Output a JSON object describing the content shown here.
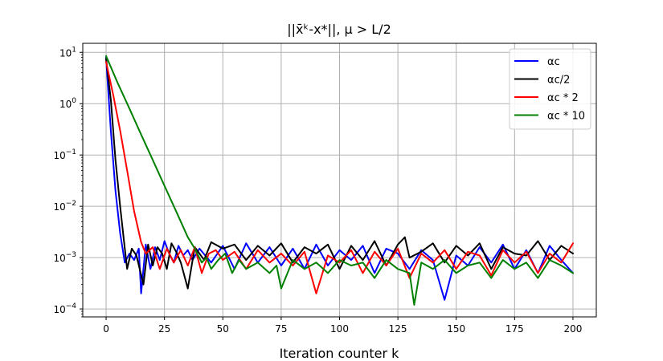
{
  "chart_data": {
    "type": "line",
    "title": "||x̄ᵏ-x*||, μ > L/2",
    "xlabel": "Iteration counter k",
    "ylabel": "",
    "xlim": [
      -10,
      210
    ],
    "ylim": [
      7e-05,
      15
    ],
    "yscale": "log",
    "grid": true,
    "legend_position": "top-right",
    "x_ticks": [
      0,
      25,
      50,
      75,
      100,
      125,
      150,
      175,
      200
    ],
    "x_tick_labels": [
      "0",
      "25",
      "50",
      "75",
      "100",
      "125",
      "150",
      "175",
      "200"
    ],
    "y_ticks": [
      0.0001,
      0.001,
      0.01,
      0.1,
      1,
      10
    ],
    "y_tick_labels": [
      {
        "base": "10",
        "exp": "−4"
      },
      {
        "base": "10",
        "exp": "−3"
      },
      {
        "base": "10",
        "exp": "−2"
      },
      {
        "base": "10",
        "exp": "−1"
      },
      {
        "base": "10",
        "exp": "0"
      },
      {
        "base": "10",
        "exp": "1"
      }
    ],
    "series": [
      {
        "name": "αc",
        "color": "#0000ff",
        "x": [
          0,
          2,
          4,
          6,
          8,
          10,
          12,
          14,
          15,
          17,
          19,
          21,
          23,
          25,
          27,
          29,
          31,
          33,
          35,
          37,
          40,
          45,
          50,
          55,
          60,
          65,
          70,
          75,
          80,
          85,
          90,
          95,
          100,
          105,
          110,
          115,
          120,
          125,
          130,
          135,
          140,
          145,
          150,
          155,
          160,
          165,
          170,
          175,
          180,
          185,
          190,
          195,
          200
        ],
        "y": [
          8.0,
          0.3,
          0.02,
          0.003,
          0.0008,
          0.0012,
          0.0009,
          0.0015,
          0.0002,
          0.0018,
          0.0006,
          0.0016,
          0.0009,
          0.0021,
          0.0012,
          0.0008,
          0.0017,
          0.0011,
          0.0014,
          0.0009,
          0.0015,
          0.0008,
          0.0017,
          0.0006,
          0.0019,
          0.0008,
          0.0016,
          0.0007,
          0.0015,
          0.0006,
          0.0018,
          0.0007,
          0.0014,
          0.0009,
          0.0017,
          0.0005,
          0.0015,
          0.0012,
          0.0006,
          0.0014,
          0.0009,
          0.00015,
          0.0011,
          0.0007,
          0.0016,
          0.0008,
          0.0018,
          0.0006,
          0.0014,
          0.0005,
          0.0017,
          0.0009,
          0.0005
        ]
      },
      {
        "name": "αc/2",
        "color": "#000000",
        "x": [
          0,
          2,
          4,
          6,
          8,
          9,
          11,
          13,
          16,
          18,
          20,
          22,
          24,
          26,
          28,
          30,
          32,
          35,
          38,
          42,
          45,
          50,
          55,
          60,
          65,
          70,
          75,
          80,
          85,
          90,
          95,
          100,
          105,
          110,
          115,
          120,
          125,
          128,
          130,
          135,
          140,
          145,
          150,
          155,
          160,
          165,
          170,
          175,
          180,
          185,
          190,
          195,
          200
        ],
        "y": [
          7.5,
          1.2,
          0.08,
          0.01,
          0.0015,
          0.0006,
          0.0015,
          0.0011,
          0.0003,
          0.0018,
          0.0007,
          0.0016,
          0.0012,
          0.0006,
          0.0019,
          0.0013,
          0.0008,
          0.00025,
          0.0016,
          0.0009,
          0.002,
          0.0015,
          0.0018,
          0.0009,
          0.0017,
          0.0011,
          0.0019,
          0.0008,
          0.0016,
          0.0012,
          0.0018,
          0.0006,
          0.0017,
          0.0009,
          0.0021,
          0.0007,
          0.0018,
          0.0025,
          0.001,
          0.0013,
          0.0019,
          0.0008,
          0.0017,
          0.0011,
          0.0019,
          0.0006,
          0.0016,
          0.0012,
          0.0011,
          0.0021,
          0.0009,
          0.0017,
          0.0012
        ]
      },
      {
        "name": "αc * 2",
        "color": "#ff0000",
        "x": [
          0,
          3,
          6,
          9,
          12,
          15,
          17,
          20,
          23,
          26,
          29,
          32,
          35,
          38,
          41,
          44,
          47,
          50,
          55,
          60,
          65,
          70,
          75,
          80,
          85,
          90,
          95,
          100,
          105,
          110,
          115,
          120,
          125,
          130,
          135,
          140,
          145,
          150,
          155,
          160,
          165,
          170,
          175,
          180,
          185,
          190,
          195,
          200
        ],
        "y": [
          6.5,
          1.5,
          0.3,
          0.05,
          0.008,
          0.002,
          0.0012,
          0.0016,
          0.0006,
          0.0015,
          0.0008,
          0.0014,
          0.0007,
          0.0016,
          0.0005,
          0.0012,
          0.0014,
          0.0009,
          0.0013,
          0.0006,
          0.0014,
          0.0008,
          0.0012,
          0.0007,
          0.0013,
          0.0002,
          0.0011,
          0.0008,
          0.0014,
          0.0005,
          0.0013,
          0.0007,
          0.0015,
          0.0004,
          0.0012,
          0.0008,
          0.0014,
          0.0006,
          0.0013,
          0.0011,
          0.00045,
          0.0014,
          0.0008,
          0.0013,
          0.0005,
          0.0012,
          0.0008,
          0.0019
        ]
      },
      {
        "name": "αc * 10",
        "color": "#008000",
        "x": [
          0,
          5,
          10,
          15,
          20,
          25,
          30,
          35,
          38,
          41,
          43,
          45,
          48,
          51,
          54,
          57,
          60,
          65,
          70,
          73,
          75,
          80,
          85,
          90,
          95,
          100,
          105,
          110,
          115,
          120,
          125,
          130,
          132,
          135,
          140,
          145,
          150,
          155,
          160,
          165,
          170,
          175,
          180,
          185,
          190,
          195,
          200
        ],
        "y": [
          8.5,
          2.5,
          0.8,
          0.25,
          0.08,
          0.025,
          0.008,
          0.0025,
          0.0015,
          0.0008,
          0.001,
          0.0006,
          0.0009,
          0.0012,
          0.0005,
          0.0009,
          0.0006,
          0.0008,
          0.0005,
          0.0007,
          0.00025,
          0.0009,
          0.0006,
          0.0008,
          0.0005,
          0.0009,
          0.0007,
          0.0008,
          0.0004,
          0.0009,
          0.0006,
          0.0005,
          0.00012,
          0.0008,
          0.0006,
          0.0009,
          0.0005,
          0.0007,
          0.0008,
          0.0004,
          0.0009,
          0.0006,
          0.0008,
          0.0004,
          0.0009,
          0.0007,
          0.0005
        ]
      }
    ]
  }
}
